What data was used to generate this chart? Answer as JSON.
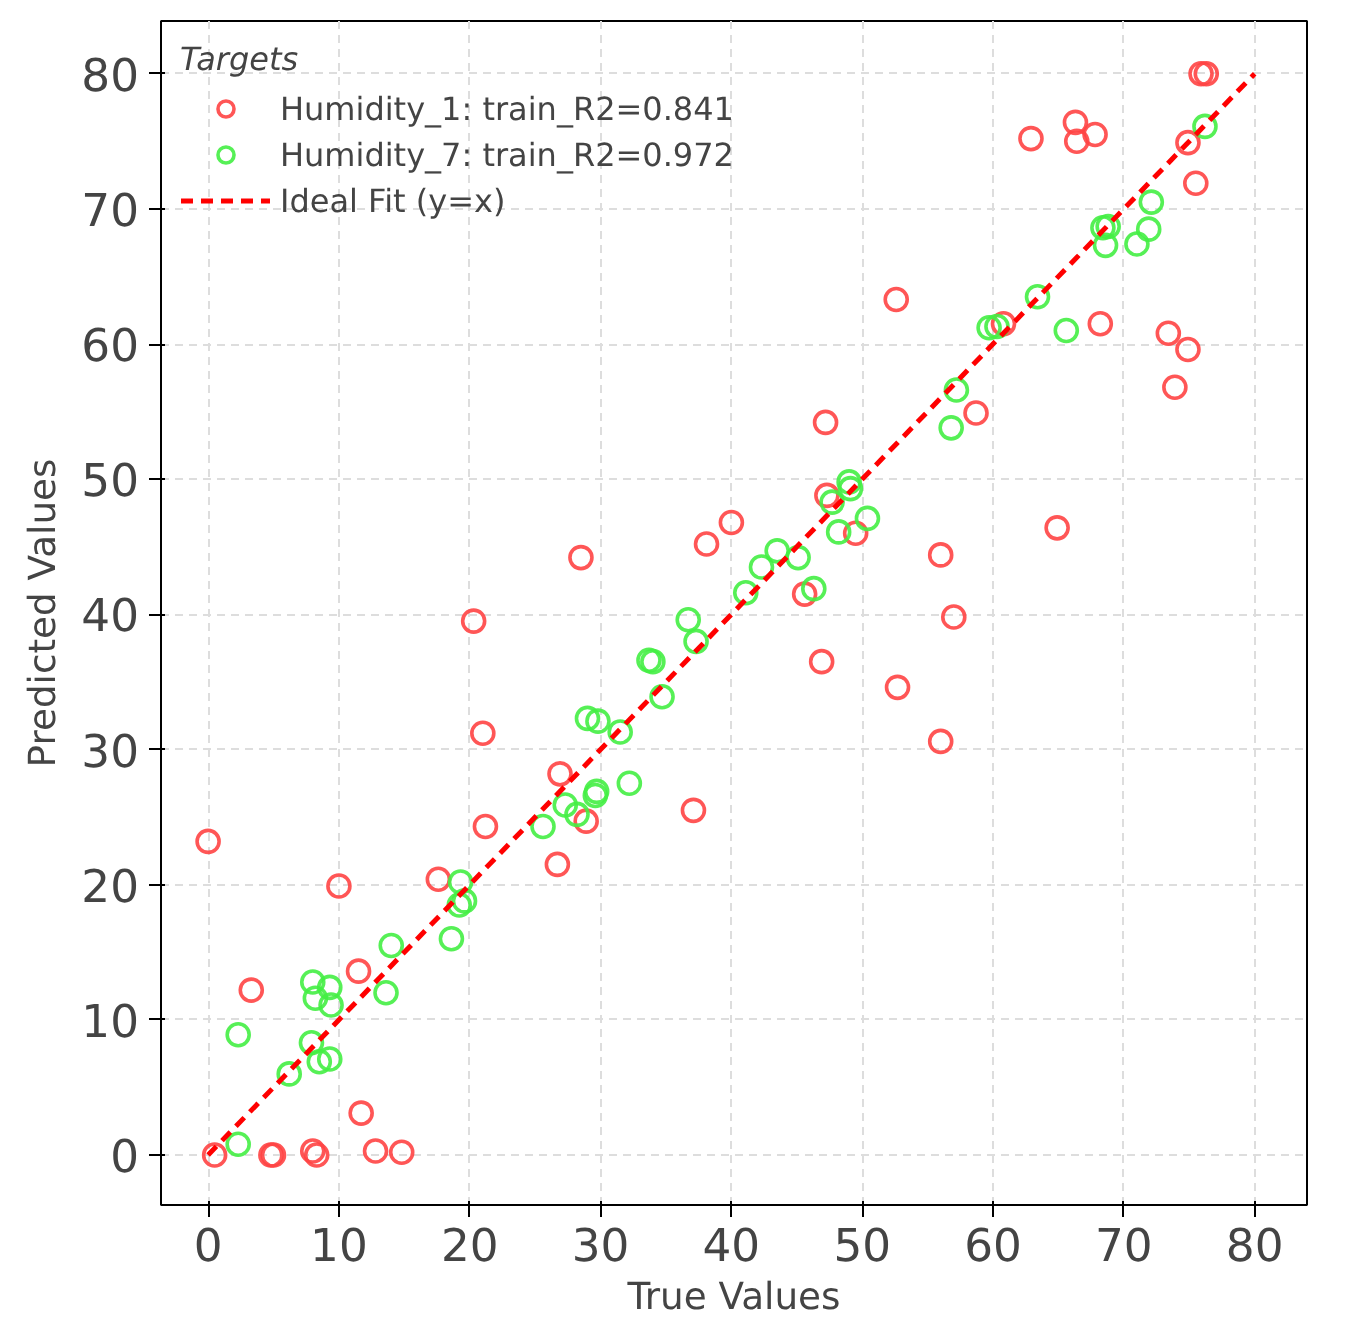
{
  "chart_data": {
    "type": "scatter",
    "xlabel": "True Values",
    "ylabel": "Predicted Values",
    "legend_title": "Targets",
    "legend": "top left",
    "grid": true,
    "marker": "circle",
    "xlim": [
      -3.6,
      84
    ],
    "ylim": [
      -3.7,
      83.9
    ],
    "xticks": [
      0,
      10,
      20,
      30,
      40,
      50,
      60,
      70,
      80
    ],
    "yticks": [
      0,
      10,
      20,
      30,
      40,
      50,
      60,
      70,
      80
    ],
    "series": [
      {
        "name": "Humidity_1: train_R2=0.841",
        "color": "#ff4444",
        "x": [
          0,
          0.5,
          3.3,
          4.8,
          5,
          8,
          8.3,
          10,
          11.5,
          11.7,
          12.8,
          14.8,
          17.6,
          20.3,
          21,
          21.2,
          26.7,
          26.9,
          28.5,
          28.9,
          37.1,
          38.1,
          40,
          45.6,
          46.9,
          47.2,
          47.3,
          49.5,
          52.6,
          52.7,
          56,
          56,
          57,
          58.7,
          60.8,
          62.9,
          64.9,
          66.3,
          66.4,
          67.8,
          68.2,
          73.4,
          73.9,
          74.9,
          74.9,
          75.5,
          75.9,
          76.3
        ],
        "values": [
          23.2,
          0,
          12.2,
          0,
          0,
          0.3,
          0,
          19.9,
          13.6,
          3.1,
          0.3,
          0.2,
          20.4,
          39.5,
          31.2,
          24.3,
          21.5,
          28.2,
          44.2,
          24.7,
          25.5,
          45.2,
          46.8,
          41.5,
          36.5,
          54.2,
          48.8,
          46,
          63.3,
          34.6,
          44.4,
          30.6,
          39.8,
          54.9,
          61.5,
          75.2,
          46.4,
          76.4,
          75,
          75.5,
          61.5,
          60.8,
          56.8,
          59.6,
          74.9,
          71.9,
          80,
          80
        ]
      },
      {
        "name": "Humidity_7: train_R2=0.972",
        "color": "#44ee44",
        "x": [
          2.3,
          2.3,
          6.2,
          7.9,
          8,
          8.2,
          8.5,
          9.3,
          9.3,
          9.4,
          13.6,
          14,
          18.6,
          19.2,
          19.3,
          19.6,
          25.6,
          27.3,
          28.2,
          29,
          29.6,
          29.7,
          29.8,
          31.5,
          32.2,
          33.7,
          34,
          34.7,
          36.7,
          37.3,
          41.1,
          42.3,
          43.5,
          45.1,
          46.3,
          47.7,
          48.2,
          49,
          49.1,
          50.4,
          56.8,
          57.2,
          59.7,
          60.3,
          63.4,
          65.6,
          68.4,
          68.6,
          68.8,
          71,
          71.9,
          72.1,
          76.2
        ],
        "values": [
          0.8,
          8.9,
          6,
          8.3,
          12.8,
          11.6,
          6.9,
          7.1,
          12.4,
          11.1,
          12,
          15.5,
          16,
          18.5,
          20.2,
          18.8,
          24.3,
          25.9,
          25.2,
          32.3,
          26.6,
          26.9,
          32.1,
          31.3,
          27.5,
          36.6,
          36.5,
          33.9,
          39.6,
          38,
          41.6,
          43.5,
          44.7,
          44.2,
          41.9,
          48.3,
          46.1,
          49.8,
          49.3,
          47.1,
          53.8,
          56.6,
          61.2,
          61.3,
          63.5,
          61,
          68.6,
          67.3,
          68.7,
          67.4,
          68.5,
          70.5,
          76.1
        ]
      },
      {
        "name": "Ideal Fit (y=x)",
        "type": "line",
        "line_style": "dashed",
        "marker": "none",
        "color": "#ff0000",
        "x": [
          0,
          80
        ],
        "values": [
          0,
          80
        ]
      }
    ]
  }
}
